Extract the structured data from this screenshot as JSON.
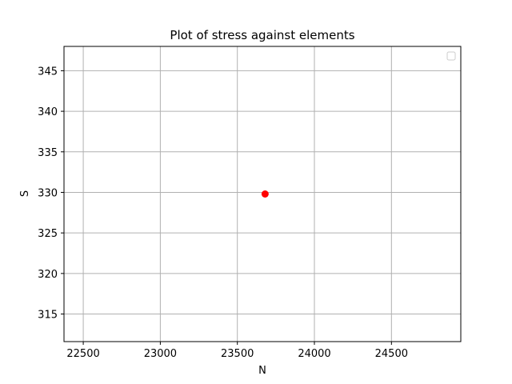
{
  "chart_data": {
    "type": "scatter",
    "title": "Plot of stress against elements",
    "xlabel": "N",
    "ylabel": "S",
    "xlim": [
      22375,
      24950
    ],
    "ylim": [
      311.6,
      348.0
    ],
    "xticks": [
      22500,
      23000,
      23500,
      24000,
      24500
    ],
    "yticks": [
      315,
      320,
      325,
      330,
      335,
      340,
      345
    ],
    "grid": true,
    "legend": "top-right",
    "series": [
      {
        "color": "#ff0000",
        "marker": "circle",
        "points": [
          {
            "x": 23680,
            "y": 329.8
          }
        ]
      }
    ]
  }
}
